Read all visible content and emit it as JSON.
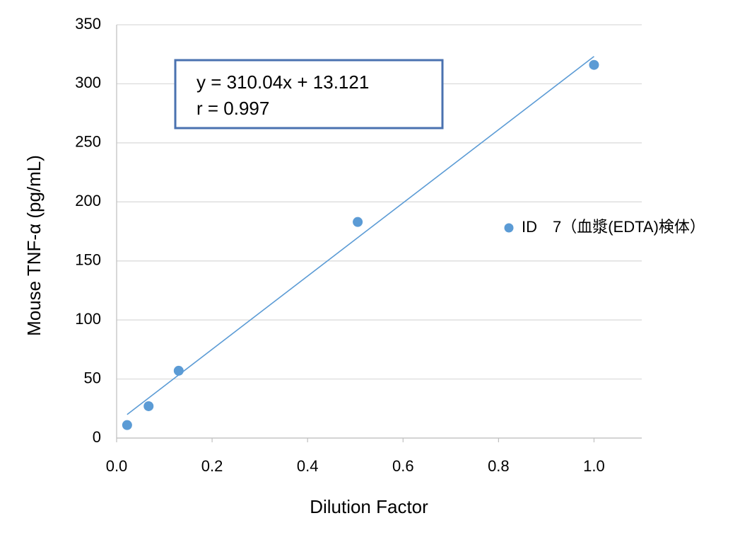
{
  "chart_data": {
    "type": "scatter",
    "x_label": "Dilution Factor",
    "y_label": "Mouse TNF-α (pg/mL)",
    "x": [
      0.022,
      0.067,
      0.13,
      0.505,
      1.0
    ],
    "series": [
      {
        "name": "ID　7（血漿(EDTA)検体）",
        "color": "#5b9bd5",
        "values": [
          11,
          27,
          57,
          183,
          316
        ]
      }
    ],
    "trendline": {
      "slope": 310.04,
      "intercept": 13.121,
      "color": "#5b9bd5"
    },
    "annotation": [
      "y = 310.04x + 13.121",
      "r = 0.997"
    ],
    "xlim": [
      0,
      1.1
    ],
    "xticks": [
      {
        "value": 0,
        "label": "0.0"
      },
      0.2,
      0.4,
      0.6,
      0.8,
      {
        "value": 1,
        "label": "1.0"
      }
    ],
    "ylim": [
      0,
      350
    ],
    "yticks": [
      0,
      50,
      100,
      150,
      200,
      250,
      300,
      350
    ],
    "grid": true,
    "legend": "right"
  }
}
